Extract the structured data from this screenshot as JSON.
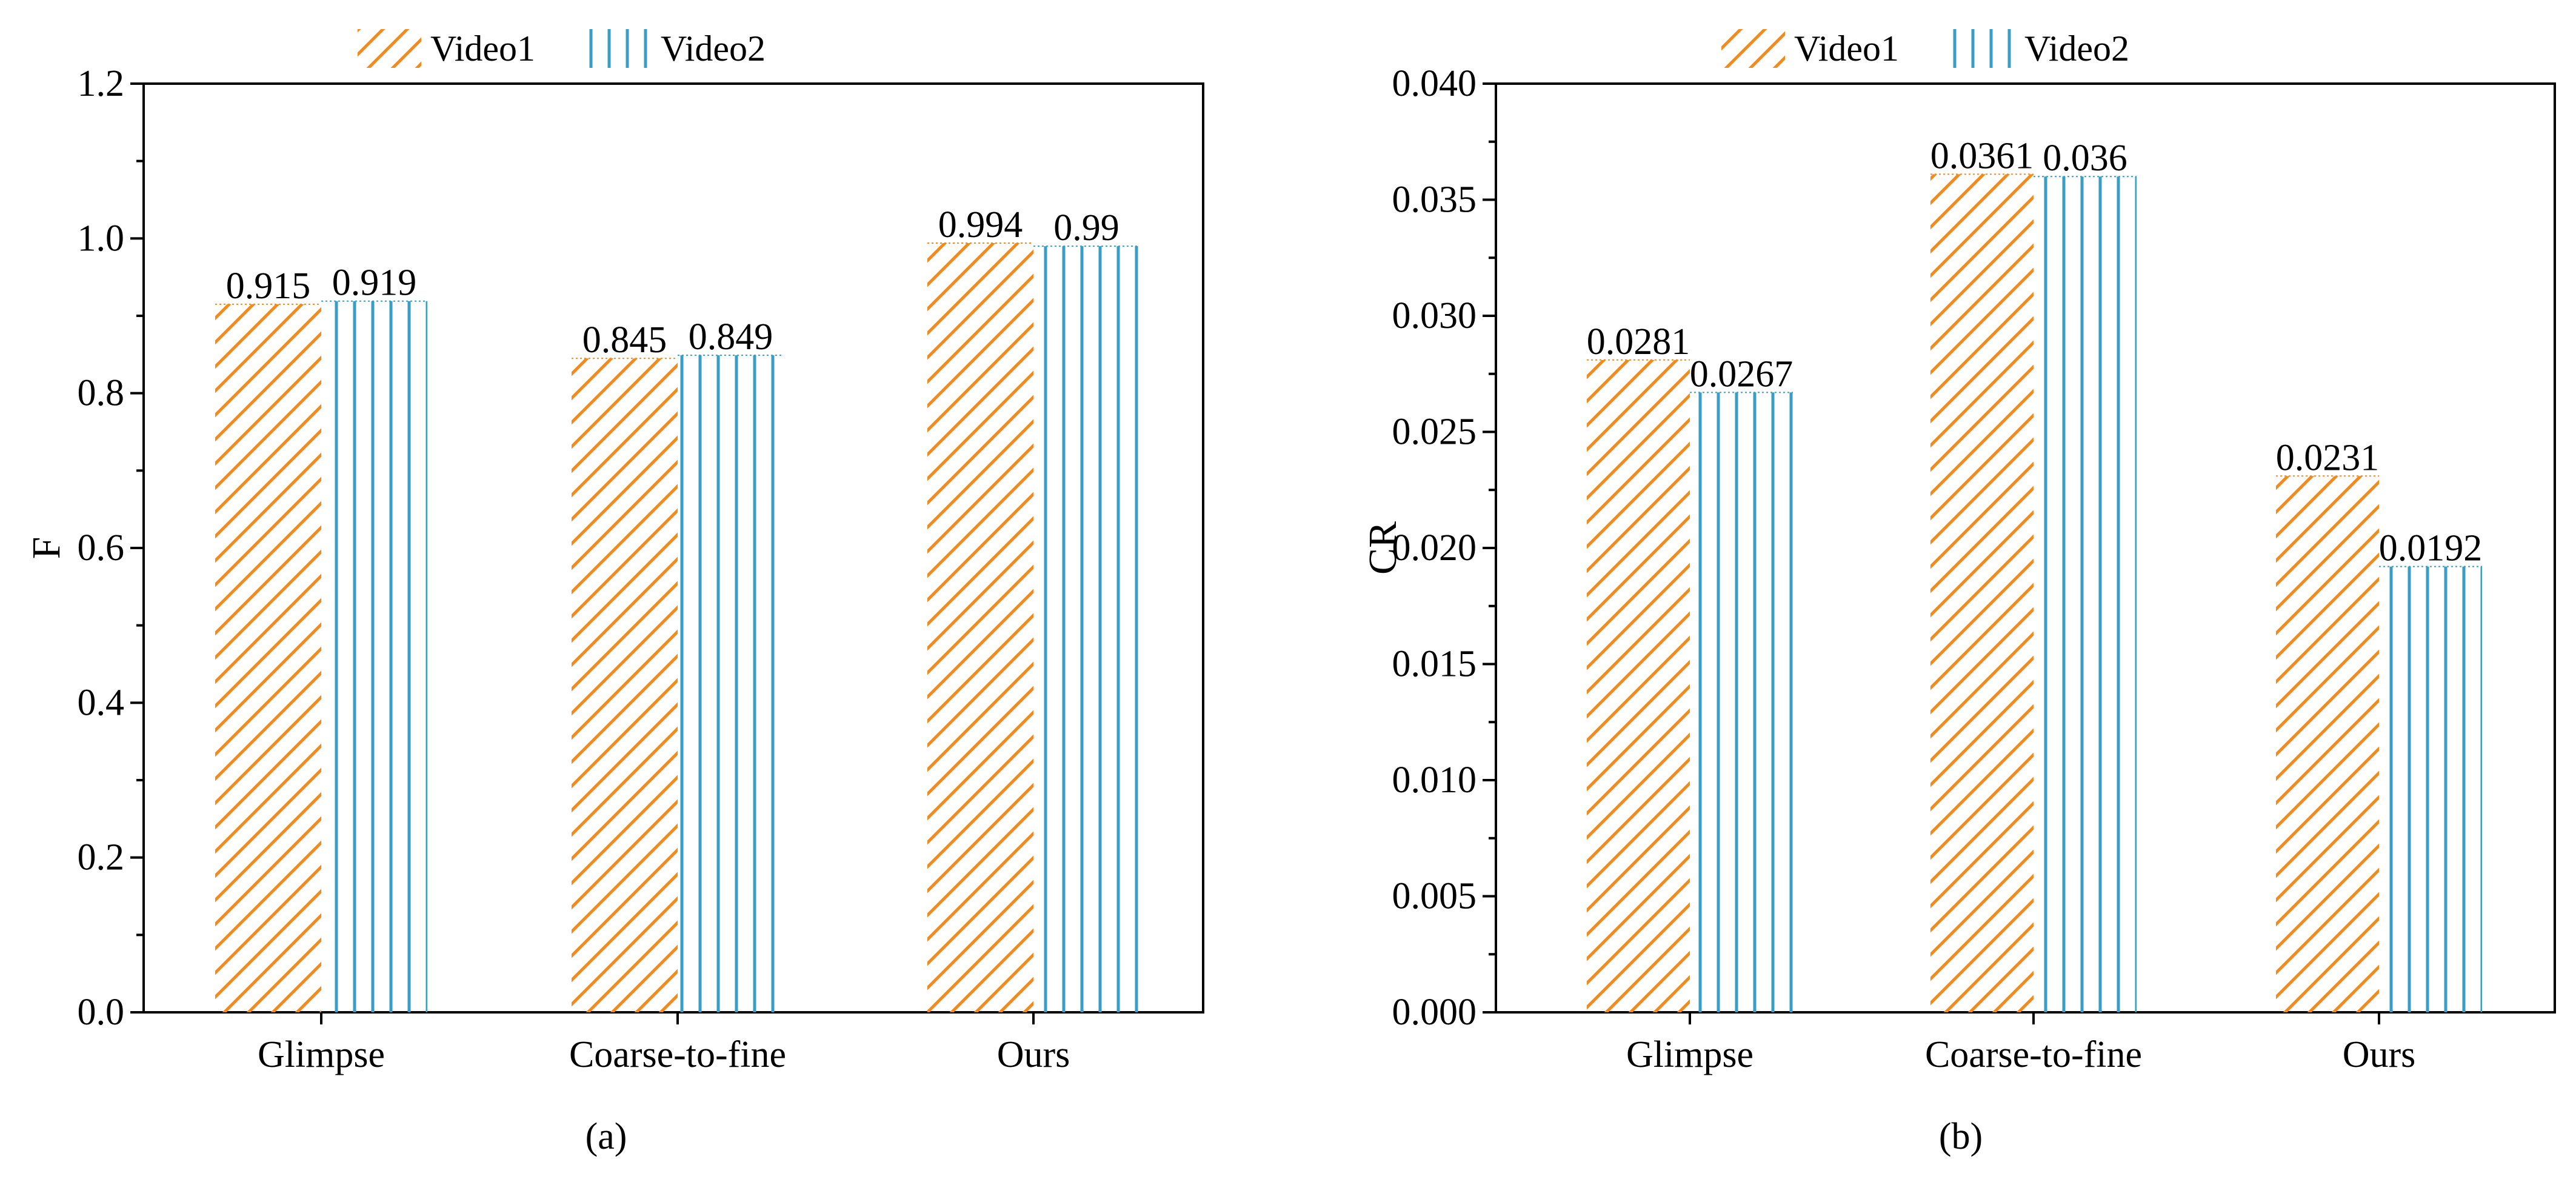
{
  "chart_data": [
    {
      "type": "bar",
      "panel_label": "(a)",
      "title": "",
      "xlabel": "",
      "ylabel": "F",
      "categories": [
        "Glimpse",
        "Coarse-to-fine",
        "Ours"
      ],
      "series": [
        {
          "name": "Video1",
          "values": [
            0.915,
            0.845,
            0.994
          ],
          "labels": [
            "0.915",
            "0.845",
            "0.994"
          ],
          "color": "#f28a1e",
          "hatch": "diagonal"
        },
        {
          "name": "Video2",
          "values": [
            0.919,
            0.849,
            0.99
          ],
          "labels": [
            "0.919",
            "0.849",
            "0.99"
          ],
          "color": "#3a9ec4",
          "hatch": "vertical"
        }
      ],
      "ylim": [
        0,
        1.2
      ],
      "yticks": [
        "0.0",
        "0.2",
        "0.4",
        "0.6",
        "0.8",
        "1.0",
        "1.2"
      ],
      "grid": false,
      "legend_position": "top"
    },
    {
      "type": "bar",
      "panel_label": "(b)",
      "title": "",
      "xlabel": "",
      "ylabel": "CR",
      "categories": [
        "Glimpse",
        "Coarse-to-fine",
        "Ours"
      ],
      "series": [
        {
          "name": "Video1",
          "values": [
            0.0281,
            0.0361,
            0.0231
          ],
          "labels": [
            "0.0281",
            "0.0361",
            "0.0231"
          ],
          "color": "#f28a1e",
          "hatch": "diagonal"
        },
        {
          "name": "Video2",
          "values": [
            0.0267,
            0.036,
            0.0192
          ],
          "labels": [
            "0.0267",
            "0.036",
            "0.0192"
          ],
          "color": "#3a9ec4",
          "hatch": "vertical"
        }
      ],
      "ylim": [
        0,
        0.04
      ],
      "yticks": [
        "0.000",
        "0.005",
        "0.010",
        "0.015",
        "0.020",
        "0.025",
        "0.030",
        "0.035",
        "0.040"
      ],
      "grid": false,
      "legend_position": "top"
    }
  ]
}
